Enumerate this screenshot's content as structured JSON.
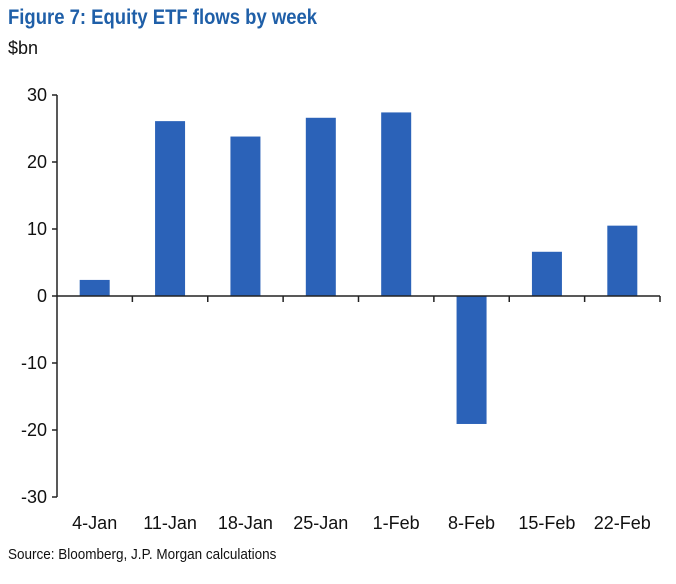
{
  "chart_data": {
    "type": "bar",
    "title": "Figure 7: Equity ETF flows by week",
    "ylabel": "$bn",
    "xlabel": "",
    "categories": [
      "4-Jan",
      "11-Jan",
      "18-Jan",
      "25-Jan",
      "1-Feb",
      "8-Feb",
      "15-Feb",
      "22-Feb"
    ],
    "values": [
      2.4,
      26.1,
      23.8,
      26.6,
      27.4,
      -19.1,
      6.6,
      10.5
    ],
    "ylim": [
      -30,
      30
    ],
    "yticks": [
      30,
      20,
      10,
      0,
      -10,
      -20,
      -30
    ],
    "grid": false,
    "bar_color": "#2b62b8",
    "source": "Source: Bloomberg, J.P. Morgan calculations"
  }
}
